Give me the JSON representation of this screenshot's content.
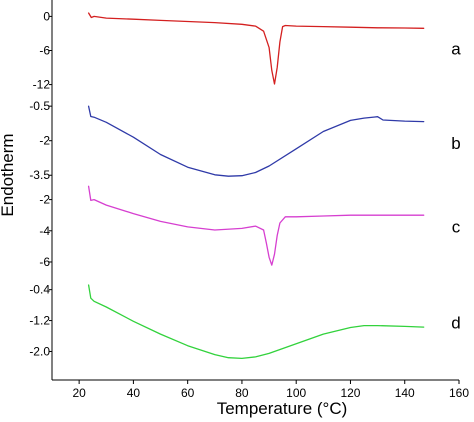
{
  "chart_data": {
    "type": "line",
    "xlabel": "Temperature (°C)",
    "ylabel": "Endotherm",
    "xlim": [
      10,
      160
    ],
    "x_ticks": [
      "20",
      "40",
      "60",
      "80",
      "100",
      "120",
      "140",
      "160"
    ],
    "x_tick_values": [
      20,
      40,
      60,
      80,
      100,
      120,
      140,
      160
    ],
    "legend": "none",
    "grid": false,
    "panels": [
      {
        "label": "a",
        "color": "#d42020",
        "ylim": [
          -12.6,
          1.3
        ],
        "y_ticks": [
          "0",
          "-6",
          "-12"
        ],
        "y_tick_values": [
          0,
          -6,
          -12
        ],
        "x": [
          23.5,
          24.5,
          25.5,
          30,
          40,
          50,
          60,
          70,
          80,
          85,
          88,
          90,
          91,
          92,
          93,
          94,
          95,
          96,
          100,
          110,
          120,
          130,
          140,
          147
        ],
        "y": [
          0.6,
          -0.2,
          0.0,
          -0.3,
          -0.5,
          -0.7,
          -0.9,
          -1.1,
          -1.4,
          -1.7,
          -2.6,
          -5.5,
          -9.5,
          -11.9,
          -9.0,
          -4.5,
          -1.8,
          -1.6,
          -1.7,
          -1.8,
          -1.9,
          -2.0,
          -2.05,
          -2.1
        ]
      },
      {
        "label": "b",
        "color": "#2f3aa8",
        "ylim": [
          -3.75,
          -0.45
        ],
        "y_ticks": [
          "-0.5",
          "-2",
          "-3.5"
        ],
        "y_tick_values": [
          -0.5,
          -2,
          -3.5
        ],
        "x": [
          23.5,
          24.3,
          25.5,
          30,
          40,
          50,
          60,
          70,
          75,
          80,
          85,
          90,
          100,
          110,
          120,
          125,
          129,
          130,
          132,
          140,
          147
        ],
        "y": [
          -0.5,
          -0.95,
          -0.98,
          -1.2,
          -1.85,
          -2.6,
          -3.15,
          -3.48,
          -3.54,
          -3.52,
          -3.38,
          -3.1,
          -2.35,
          -1.6,
          -1.12,
          -1.02,
          -0.97,
          -0.96,
          -1.1,
          -1.15,
          -1.17
        ]
      },
      {
        "label": "c",
        "color": "#d63fd0",
        "ylim": [
          -6.45,
          -1.0
        ],
        "y_ticks": [
          "-2",
          "-4",
          "-6"
        ],
        "y_tick_values": [
          -2,
          -4,
          -6
        ],
        "x": [
          23.5,
          24.3,
          25.5,
          30,
          40,
          50,
          60,
          70,
          80,
          85,
          88,
          89,
          90,
          91,
          92,
          93,
          94,
          96,
          100,
          110,
          120,
          130,
          140,
          147
        ],
        "y": [
          -1.15,
          -2.05,
          -2.0,
          -2.35,
          -2.9,
          -3.4,
          -3.75,
          -3.95,
          -3.85,
          -3.7,
          -3.95,
          -4.8,
          -5.7,
          -6.2,
          -5.5,
          -4.3,
          -3.5,
          -3.1,
          -3.1,
          -3.05,
          -3.0,
          -3.0,
          -3.0,
          -3.0
        ]
      },
      {
        "label": "d",
        "color": "#32d23c",
        "ylim": [
          -2.35,
          -0.15
        ],
        "y_ticks": [
          "-0.4",
          "-1.2",
          "-2.0"
        ],
        "y_tick_values": [
          -0.4,
          -1.2,
          -2.0
        ],
        "x": [
          23.5,
          24.3,
          25.5,
          30,
          40,
          50,
          60,
          70,
          75,
          80,
          85,
          90,
          100,
          110,
          120,
          125,
          130,
          140,
          147
        ],
        "y": [
          -0.28,
          -0.62,
          -0.7,
          -0.85,
          -1.22,
          -1.55,
          -1.85,
          -2.08,
          -2.16,
          -2.18,
          -2.14,
          -2.05,
          -1.8,
          -1.55,
          -1.38,
          -1.33,
          -1.33,
          -1.35,
          -1.37
        ]
      }
    ]
  }
}
